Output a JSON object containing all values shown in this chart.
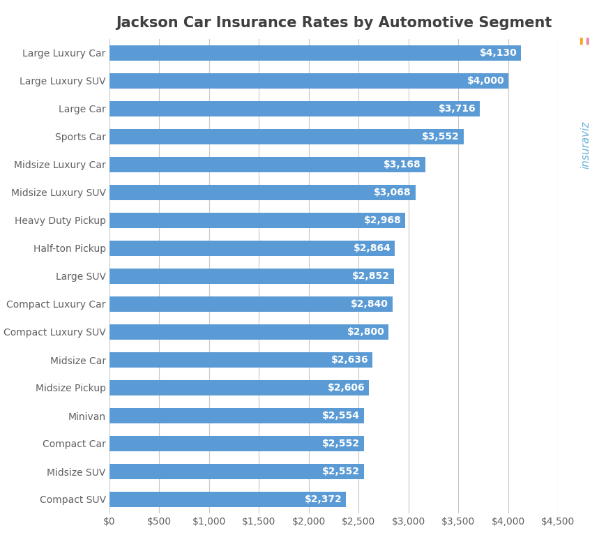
{
  "title": "Jackson Car Insurance Rates by Automotive Segment",
  "categories": [
    "Compact SUV",
    "Midsize SUV",
    "Compact Car",
    "Minivan",
    "Midsize Pickup",
    "Midsize Car",
    "Compact Luxury SUV",
    "Compact Luxury Car",
    "Large SUV",
    "Half-ton Pickup",
    "Heavy Duty Pickup",
    "Midsize Luxury SUV",
    "Midsize Luxury Car",
    "Sports Car",
    "Large Car",
    "Large Luxury SUV",
    "Large Luxury Car"
  ],
  "values": [
    2372,
    2552,
    2552,
    2554,
    2606,
    2636,
    2800,
    2840,
    2852,
    2864,
    2968,
    3068,
    3168,
    3552,
    3716,
    4000,
    4130
  ],
  "bar_color": "#5b9bd5",
  "label_color": "#ffffff",
  "background_color": "#ffffff",
  "grid_color": "#c8c8c8",
  "title_color": "#404040",
  "tick_color": "#606060",
  "xlim": [
    0,
    4500
  ],
  "xticks": [
    0,
    500,
    1000,
    1500,
    2000,
    2500,
    3000,
    3500,
    4000,
    4500
  ],
  "xtick_labels": [
    "$0",
    "$500",
    "$1,000",
    "$1,500",
    "$2,000",
    "$2,500",
    "$3,000",
    "$3,500",
    "$4,000",
    "$4,500"
  ],
  "title_fontsize": 15,
  "label_fontsize": 10,
  "tick_fontsize": 10,
  "bar_label_fontsize": 10,
  "bar_height": 0.55,
  "logo_text": "insuraviz",
  "logo_color_main": "#6db3d8",
  "logo_color_pink": "#e888a0",
  "logo_color_accent": "#f5a623"
}
